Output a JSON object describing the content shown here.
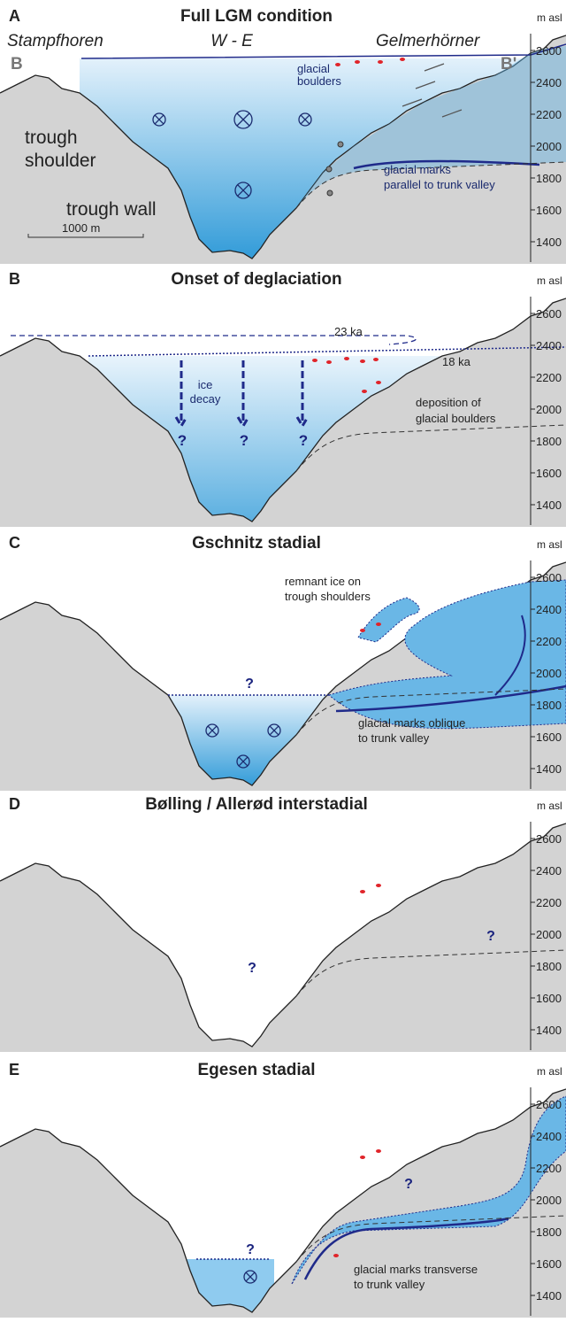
{
  "axis_unit": "m asl",
  "axis_ticks": [
    2600,
    2400,
    2200,
    2000,
    1800,
    1600,
    1400
  ],
  "panels": [
    {
      "letter": "A",
      "title": "Full LGM condition",
      "labels": [
        [
          "Stampfhoren"
        ],
        [
          "W - E"
        ],
        [
          "Gelmerhörner"
        ],
        [
          "B"
        ],
        [
          "B'"
        ],
        [
          "glacial",
          "boulders"
        ],
        [
          "trough",
          "shoulder"
        ],
        [
          "trough wall"
        ],
        [
          "glacial marks",
          "parallel to trunk valley"
        ],
        [
          "1000 m"
        ]
      ]
    },
    {
      "letter": "B",
      "title": "Onset of deglaciation",
      "labels": [
        [
          "23 ka"
        ],
        [
          "18 ka"
        ],
        [
          "ice",
          "decay"
        ],
        [
          "?"
        ],
        [
          "?"
        ],
        [
          "?"
        ],
        [
          "deposition of",
          "glacial boulders"
        ]
      ]
    },
    {
      "letter": "C",
      "title": "Gschnitz stadial",
      "labels": [
        [
          "remnant ice on",
          "trough shoulders"
        ],
        [
          "?"
        ],
        [
          "glacial marks oblique",
          "to trunk valley"
        ]
      ]
    },
    {
      "letter": "D",
      "title": "Bølling / Allerød interstadial",
      "labels": [
        [
          "?"
        ],
        [
          "?"
        ]
      ]
    },
    {
      "letter": "E",
      "title": "Egesen stadial",
      "labels": [
        [
          "?"
        ],
        [
          "?"
        ],
        [
          "glacial marks transverse",
          "to trunk valley"
        ]
      ]
    }
  ]
}
